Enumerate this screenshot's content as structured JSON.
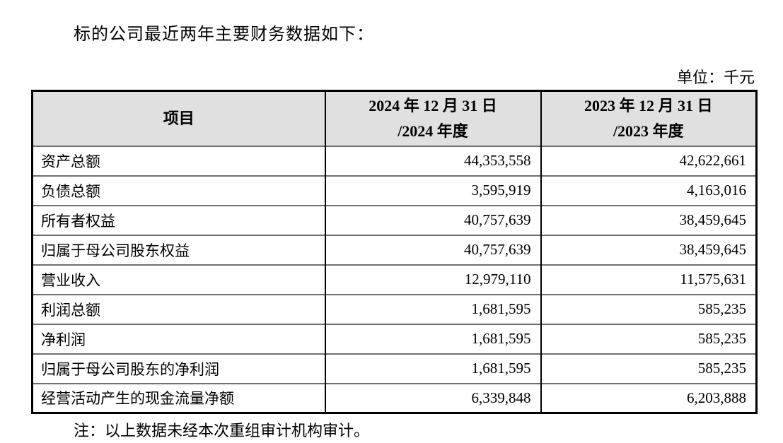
{
  "title": "标的公司最近两年主要财务数据如下：",
  "unit_label": "单位：千元",
  "table": {
    "header": {
      "item": "项目",
      "col2024_line1": "2024 年 12 月 31 日",
      "col2024_line2": "/2024 年度",
      "col2023_line1": "2023 年 12 月 31 日",
      "col2023_line2": "/2023 年度"
    },
    "rows": [
      {
        "item": "资产总额",
        "v2024": "44,353,558",
        "v2023": "42,622,661"
      },
      {
        "item": "负债总额",
        "v2024": "3,595,919",
        "v2023": "4,163,016"
      },
      {
        "item": "所有者权益",
        "v2024": "40,757,639",
        "v2023": "38,459,645"
      },
      {
        "item": "归属于母公司股东权益",
        "v2024": "40,757,639",
        "v2023": "38,459,645"
      },
      {
        "item": "营业收入",
        "v2024": "12,979,110",
        "v2023": "11,575,631"
      },
      {
        "item": "利润总额",
        "v2024": "1,681,595",
        "v2023": "585,235"
      },
      {
        "item": "净利润",
        "v2024": "1,681,595",
        "v2023": "585,235"
      },
      {
        "item": "归属于母公司股东的净利润",
        "v2024": "1,681,595",
        "v2023": "585,235"
      },
      {
        "item": "经营活动产生的现金流量净额",
        "v2024": "6,339,848",
        "v2023": "6,203,888"
      }
    ]
  },
  "note": "注：以上数据未经本次重组审计机构审计。",
  "colors": {
    "background": "#ffffff",
    "text": "#000000",
    "header_bg": "#e0e0e0",
    "border_outer": "#000000",
    "border_inner_vertical": "#000000",
    "border_inner_horizontal": "#6f6f6f"
  }
}
